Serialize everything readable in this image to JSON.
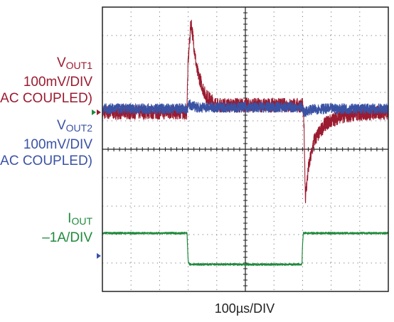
{
  "colors": {
    "vout1": "#9b1b30",
    "vout2": "#3a52a4",
    "iout": "#1f8a3c",
    "grid": "#777777",
    "frame": "#222222"
  },
  "chart_data": {
    "type": "line",
    "title": "",
    "xlabel": "100µs/DIV",
    "ylabel": "",
    "grid": true,
    "divisions": {
      "x": 10,
      "y": 10
    },
    "xlim": [
      0,
      1000
    ],
    "x_unit": "µs",
    "legend": "left-side labels",
    "series": [
      {
        "name": "VOUT1",
        "name_main": "V",
        "name_sub": "OUT1",
        "scale": "100mV/DIV",
        "coupling": "(AC COUPLED)",
        "units": "mV",
        "x": [
          0,
          295,
          300,
          310,
          330,
          360,
          400,
          500,
          690,
          700,
          705,
          710,
          720,
          740,
          780,
          830,
          900,
          1000
        ],
        "y": [
          0,
          0,
          180,
          320,
          150,
          60,
          25,
          25,
          25,
          25,
          -40,
          -300,
          -200,
          -100,
          -40,
          -15,
          -5,
          0
        ],
        "noise_mv": 25
      },
      {
        "name": "VOUT2",
        "name_main": "V",
        "name_sub": "OUT2",
        "scale": "100mV/DIV",
        "coupling": "(AC COUPLED)",
        "units": "mV",
        "x": [
          0,
          295,
          305,
          330,
          700,
          705,
          720,
          760,
          1000
        ],
        "y": [
          0,
          0,
          15,
          5,
          5,
          -15,
          -5,
          0,
          0
        ],
        "noise_mv": 18
      },
      {
        "name": "IOUT",
        "name_main": "I",
        "name_sub": "OUT",
        "scale": "–1A/DIV",
        "units": "A",
        "x": [
          0,
          296,
          300,
          305,
          698,
          700,
          703,
          1000
        ],
        "y": [
          0,
          0,
          -1.0,
          -1.1,
          -1.1,
          -0.4,
          0,
          0
        ],
        "noise_a": 0.035
      }
    ]
  }
}
